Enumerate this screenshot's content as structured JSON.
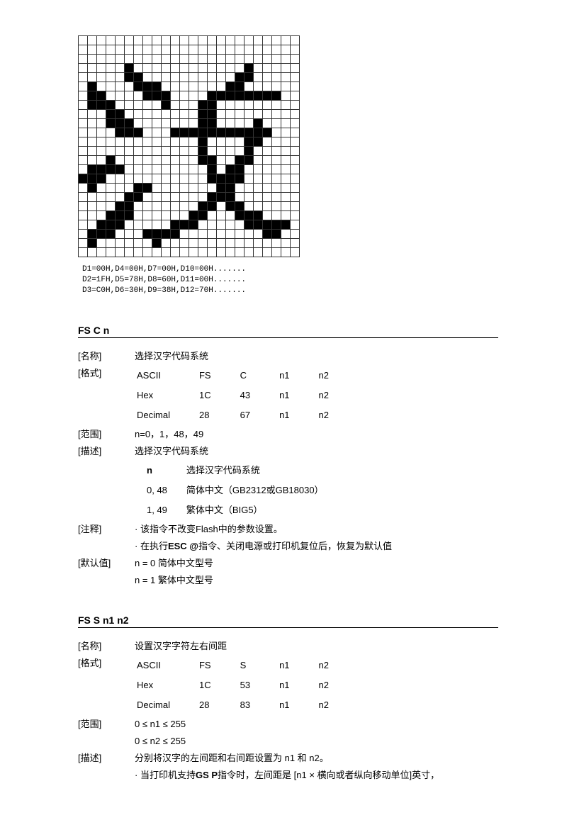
{
  "bitmap": {
    "cols": 24,
    "rows": [
      "000000000000000000000000",
      "000000000000000000000000",
      "000000000000000000000000",
      "000001000000000000100000",
      "000001100000000001100000",
      "010000111000000011000000",
      "011000011100001111111100",
      "011100000100011000000000",
      "000110000000011000000000",
      "000111000000011000010000",
      "000011100011111111111000",
      "000000000000010000110000",
      "000000000000010000100000",
      "000100000000011001100000",
      "011110000000001011000000",
      "111000000000001111000000",
      "010000110000000110000000",
      "000001100000001110000000",
      "000011000000011011000000",
      "000111000000110001110000",
      "001110000011100000111110",
      "011100011110000000001100",
      "010000001000000000000000",
      "000000000000000000000000"
    ]
  },
  "hex": {
    "l1": "D1=00H,D4=00H,D7=00H,D10=00H.......",
    "l2": "D2=1FH,D5=78H,D8=60H,D11=00H.......",
    "l3": "D3=C0H,D6=30H,D9=38H,D12=70H......."
  },
  "sec1": {
    "title": "FS C n",
    "name_label": "[名称]",
    "name_val": "选择汉字代码系统",
    "fmt_label": "[格式]",
    "fmt": {
      "r1": [
        "ASCII",
        "FS",
        "C",
        "n1",
        "n2"
      ],
      "r2": [
        "Hex",
        "1C",
        "43",
        "n1",
        "n2"
      ],
      "r3": [
        "Decimal",
        "28",
        "67",
        "n1",
        "n2"
      ]
    },
    "range_label": "[范围]",
    "range_val": "n=0，1，48，49",
    "desc_label": "[描述]",
    "desc_val": "选择汉字代码系统",
    "tbl_h1": "n",
    "tbl_h2": "选择汉字代码系统",
    "tbl_r1a": "0, 48",
    "tbl_r1b": "简体中文（GB2312或GB18030）",
    "tbl_r2a": "1, 49",
    "tbl_r2b": "繁体中文（BIG5）",
    "note_label": "[注释]",
    "note1": "· 该指令不改变Flash中的参数设置。",
    "note2a": "· 在执行",
    "note2b": "ESC @",
    "note2c": "指令、关闭电源或打印机复位后，恢复为默认值",
    "def_label": "[默认值]",
    "def1": "n = 0  简体中文型号",
    "def2": "n = 1  繁体中文型号"
  },
  "sec2": {
    "title": "FS S n1 n2",
    "name_label": "[名称]",
    "name_val": "设置汉字字符左右间距",
    "fmt_label": "[格式]",
    "fmt": {
      "r1": [
        "ASCII",
        "FS",
        "S",
        "n1",
        "n2"
      ],
      "r2": [
        "Hex",
        "1C",
        "53",
        "n1",
        "n2"
      ],
      "r3": [
        "Decimal",
        "28",
        "83",
        "n1",
        "n2"
      ]
    },
    "range_label": "[范围]",
    "range1": "0 ≤ n1 ≤ 255",
    "range2": "0 ≤ n2 ≤ 255",
    "desc_label": "[描述]",
    "desc_val": "分别将汉字的左间距和右间距设置为 n1 和 n2。",
    "desc_note_a": "· 当打印机支持",
    "desc_note_b": "GS P",
    "desc_note_c": "指令时，左间距是 [n1 × 横向或者纵向移动单位]英寸，"
  }
}
